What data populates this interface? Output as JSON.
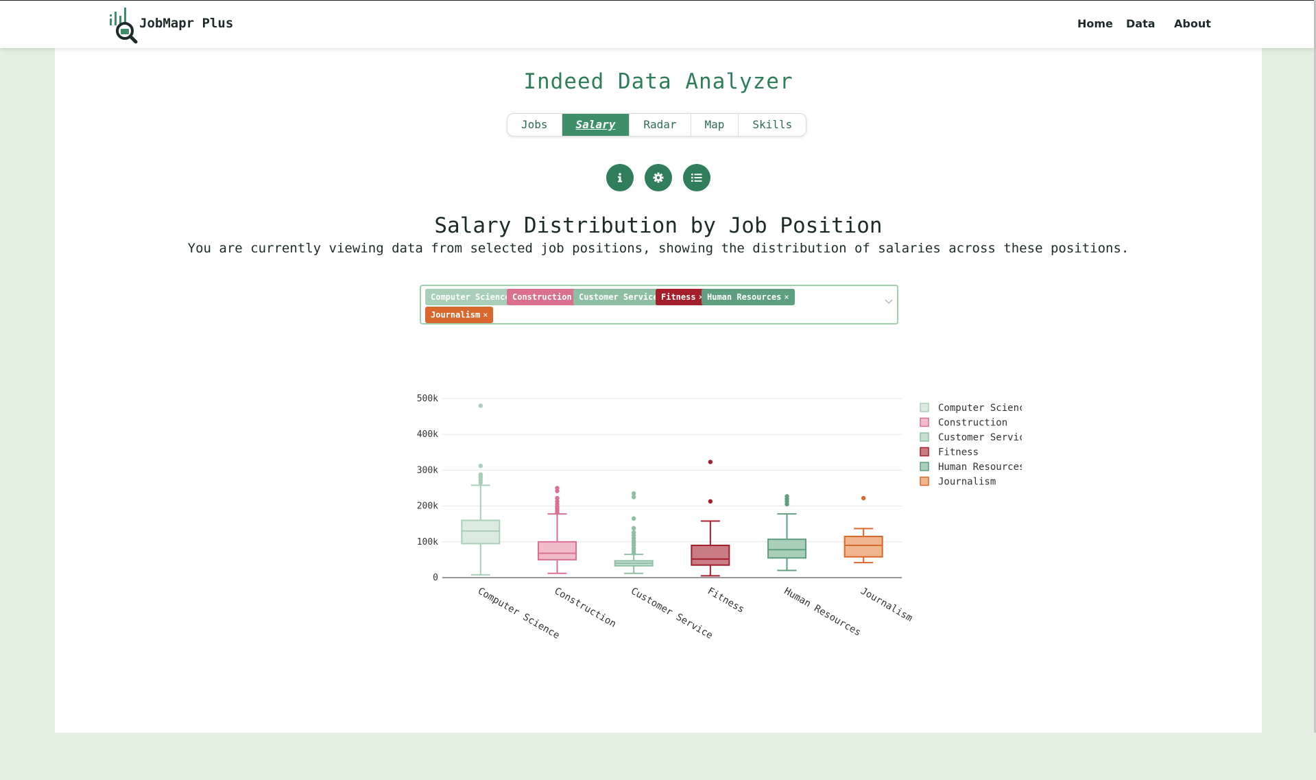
{
  "header": {
    "brand": "JobMapr Plus",
    "nav": [
      "Home",
      "Data",
      "About"
    ]
  },
  "main": {
    "app_title": "Indeed Data Analyzer",
    "tabs": [
      "Jobs",
      "Salary",
      "Radar",
      "Map",
      "Skills"
    ],
    "active_tab": "Salary",
    "icon_buttons": [
      "info-icon",
      "gear-icon",
      "list-icon"
    ],
    "chart_title": "Salary Distribution by Job Position",
    "chart_subtitle": "You are currently viewing data from selected job positions, showing the distribution of salaries across these positions."
  },
  "selector": {
    "chips": [
      {
        "label": "Computer Science",
        "color": "#a9cfb8"
      },
      {
        "label": "Construction",
        "color": "#d9708f"
      },
      {
        "label": "Customer Service",
        "color": "#8fbfa3"
      },
      {
        "label": "Fitness",
        "color": "#a31f2b"
      },
      {
        "label": "Human Resources",
        "color": "#5e9f80"
      },
      {
        "label": "Journalism",
        "color": "#d9682e"
      }
    ]
  },
  "colors": {
    "accent": "#2f7d5b",
    "page_bg": "#e3efe0"
  },
  "chart_data": {
    "type": "box",
    "title": "",
    "xlabel": "",
    "ylabel": "",
    "ylim": [
      0,
      500000
    ],
    "y_ticks": [
      "0",
      "100k",
      "200k",
      "300k",
      "400k",
      "500k"
    ],
    "legend_position": "right",
    "series": [
      {
        "name": "Computer Science",
        "color": "#a9cfb8",
        "fill": "#dcebe2",
        "min": 8000,
        "q1": 95000,
        "median": 130000,
        "q3": 160000,
        "max": 258000,
        "outliers": [
          265000,
          272000,
          278000,
          282000,
          288000,
          312000,
          480000
        ]
      },
      {
        "name": "Construction",
        "color": "#d9708f",
        "fill": "#f0bccb",
        "min": 12000,
        "q1": 50000,
        "median": 68000,
        "q3": 100000,
        "max": 178000,
        "outliers": [
          182000,
          188000,
          193000,
          198000,
          205000,
          213000,
          222000,
          242000,
          250000
        ]
      },
      {
        "name": "Customer Service",
        "color": "#8fbfa3",
        "fill": "#c6dfd0",
        "min": 12000,
        "q1": 33000,
        "median": 40000,
        "q3": 47000,
        "max": 65000,
        "outliers": [
          68000,
          75000,
          82000,
          90000,
          96000,
          102000,
          110000,
          118000,
          126000,
          138000,
          165000,
          225000,
          235000
        ]
      },
      {
        "name": "Fitness",
        "color": "#a31f2b",
        "fill": "#c97c83",
        "min": 5000,
        "q1": 35000,
        "median": 52000,
        "q3": 90000,
        "max": 158000,
        "outliers": [
          213000,
          323000
        ]
      },
      {
        "name": "Human Resources",
        "color": "#5e9f80",
        "fill": "#a9cfb8",
        "min": 20000,
        "q1": 55000,
        "median": 78000,
        "q3": 107000,
        "max": 178000,
        "outliers": [
          205000,
          213000,
          220000,
          227000
        ]
      },
      {
        "name": "Journalism",
        "color": "#d9682e",
        "fill": "#efb58f",
        "min": 42000,
        "q1": 58000,
        "median": 90000,
        "q3": 115000,
        "max": 137000,
        "outliers": [
          222000
        ]
      }
    ]
  }
}
